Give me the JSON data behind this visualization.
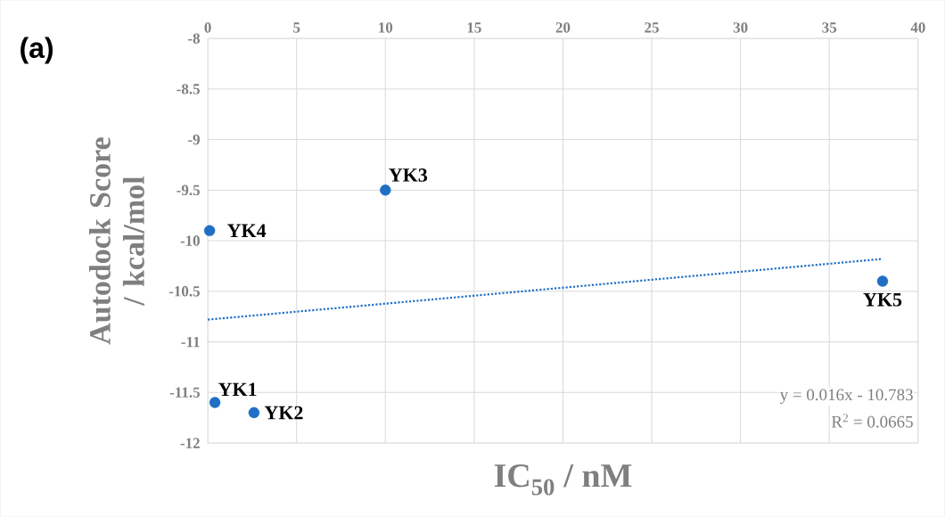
{
  "chart_data": {
    "type": "scatter",
    "xlabel": "IC$_{50}$ / nM",
    "ylabel": "Autodock Score / kcal/mol",
    "xlim": [
      0,
      40
    ],
    "xticks": [
      0,
      5,
      10,
      15,
      20,
      25,
      30,
      35,
      40
    ],
    "ylim": [
      -12,
      -8
    ],
    "yticks": [
      -12,
      -11.5,
      -11,
      -10.5,
      -10,
      -9.5,
      -9,
      -8.5,
      -8
    ],
    "grid": true,
    "marker": "circle",
    "series": [
      {
        "color": "#1f6fc5",
        "x": [
          0.4,
          2.6,
          10,
          0.1,
          38
        ],
        "values": [
          -11.6,
          -11.7,
          -9.5,
          -9.9,
          -10.4
        ]
      },
      {
        "type": "line",
        "color": "#1f6fc5",
        "line_style": "dotted",
        "marker": "none",
        "x": [
          0,
          38
        ],
        "values": [
          -10.78,
          -10.18
        ]
      }
    ],
    "annotations": [
      "(a)",
      {
        "text": "YK1",
        "x": 0.4,
        "y": -11.6
      },
      {
        "text": "YK2",
        "x": 2.6,
        "y": -11.7
      },
      {
        "text": "YK3",
        "x": 10,
        "y": -9.5
      },
      {
        "text": "YK4",
        "x": 0.1,
        "y": -9.9
      },
      {
        "text": "YK5",
        "x": 38,
        "y": -10.4
      },
      "y = 0.016x - 10.783",
      "R$^{2}$ = 0.0665"
    ]
  }
}
